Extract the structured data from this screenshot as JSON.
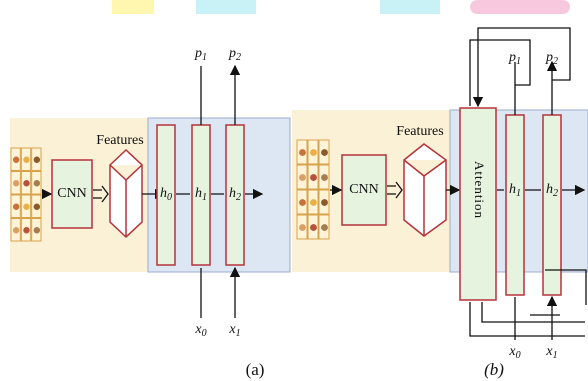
{
  "panels": [
    {
      "cnn": "CNN",
      "features": "Features",
      "states": [
        {
          "base": "h",
          "sub": "0"
        },
        {
          "base": "h",
          "sub": "1"
        },
        {
          "base": "h",
          "sub": "2"
        }
      ],
      "outputs": [
        {
          "base": "p",
          "sub": "1"
        },
        {
          "base": "p",
          "sub": "2"
        }
      ],
      "inputs": [
        {
          "base": "x",
          "sub": "0"
        },
        {
          "base": "x",
          "sub": "1"
        }
      ],
      "caption": "(a)"
    },
    {
      "cnn": "CNN",
      "features": "Features",
      "attention": "Attention",
      "states": [
        {
          "base": "h",
          "sub": "1"
        },
        {
          "base": "h",
          "sub": "2"
        }
      ],
      "outputs": [
        {
          "base": "p",
          "sub": "1"
        },
        {
          "base": "p",
          "sub": "2"
        }
      ],
      "inputs": [
        {
          "base": "x",
          "sub": "0"
        },
        {
          "base": "x",
          "sub": "1"
        }
      ],
      "caption": "(b)"
    }
  ]
}
